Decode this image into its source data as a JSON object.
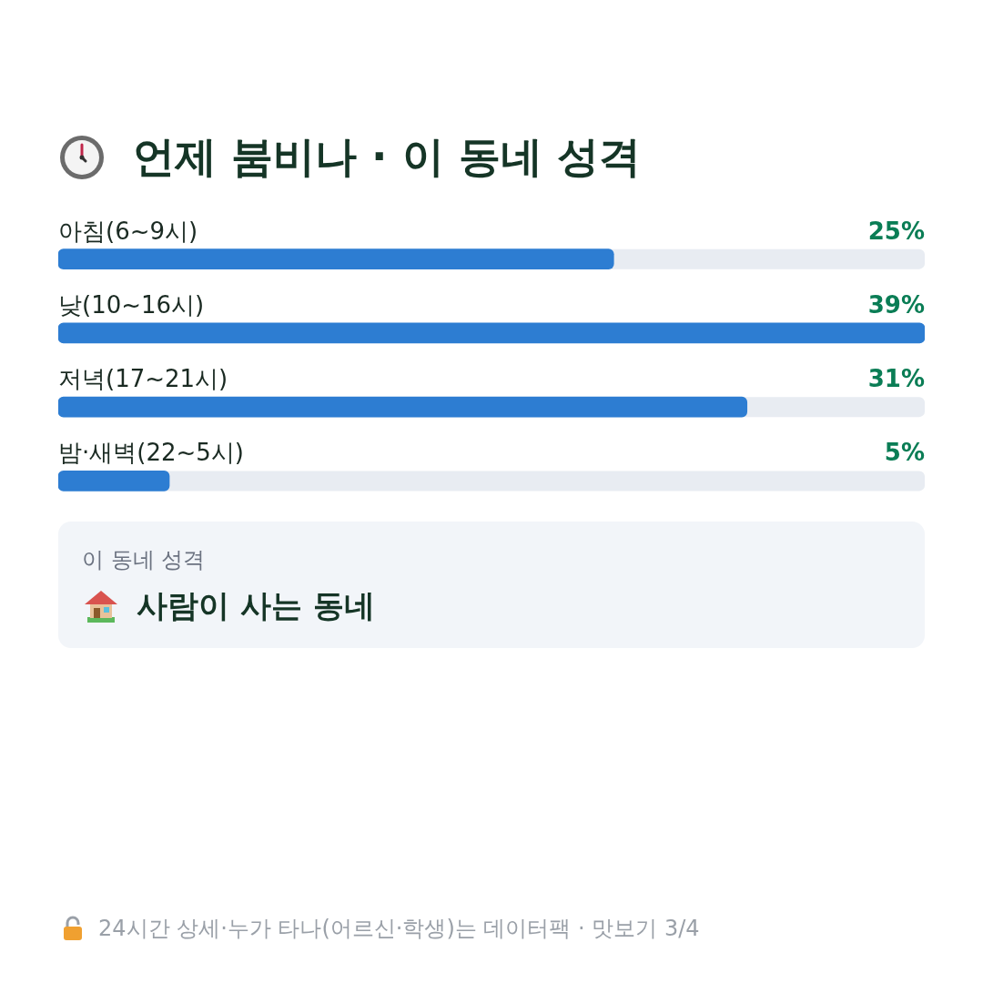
{
  "chart_data": {
    "type": "bar",
    "orientation": "horizontal",
    "xlim": [
      0,
      39
    ],
    "title": "언제 붐비나 · 이 동네 성격",
    "categories": [
      "아침(6~9시)",
      "낮(10~16시)",
      "저녁(17~21시)",
      "밤·새벽(22~5시)"
    ],
    "values": [
      25,
      39,
      31,
      5
    ],
    "value_labels": [
      "25%",
      "39%",
      "31%",
      "5%"
    ],
    "color": "#2d7dd2",
    "legend": false,
    "annotations": [
      "이 동네 성격",
      "사람이 사는 동네",
      "24시간 상세·누가 타나(어르신·학생)는 데이터팩 · 맛보기 3/4"
    ]
  }
}
